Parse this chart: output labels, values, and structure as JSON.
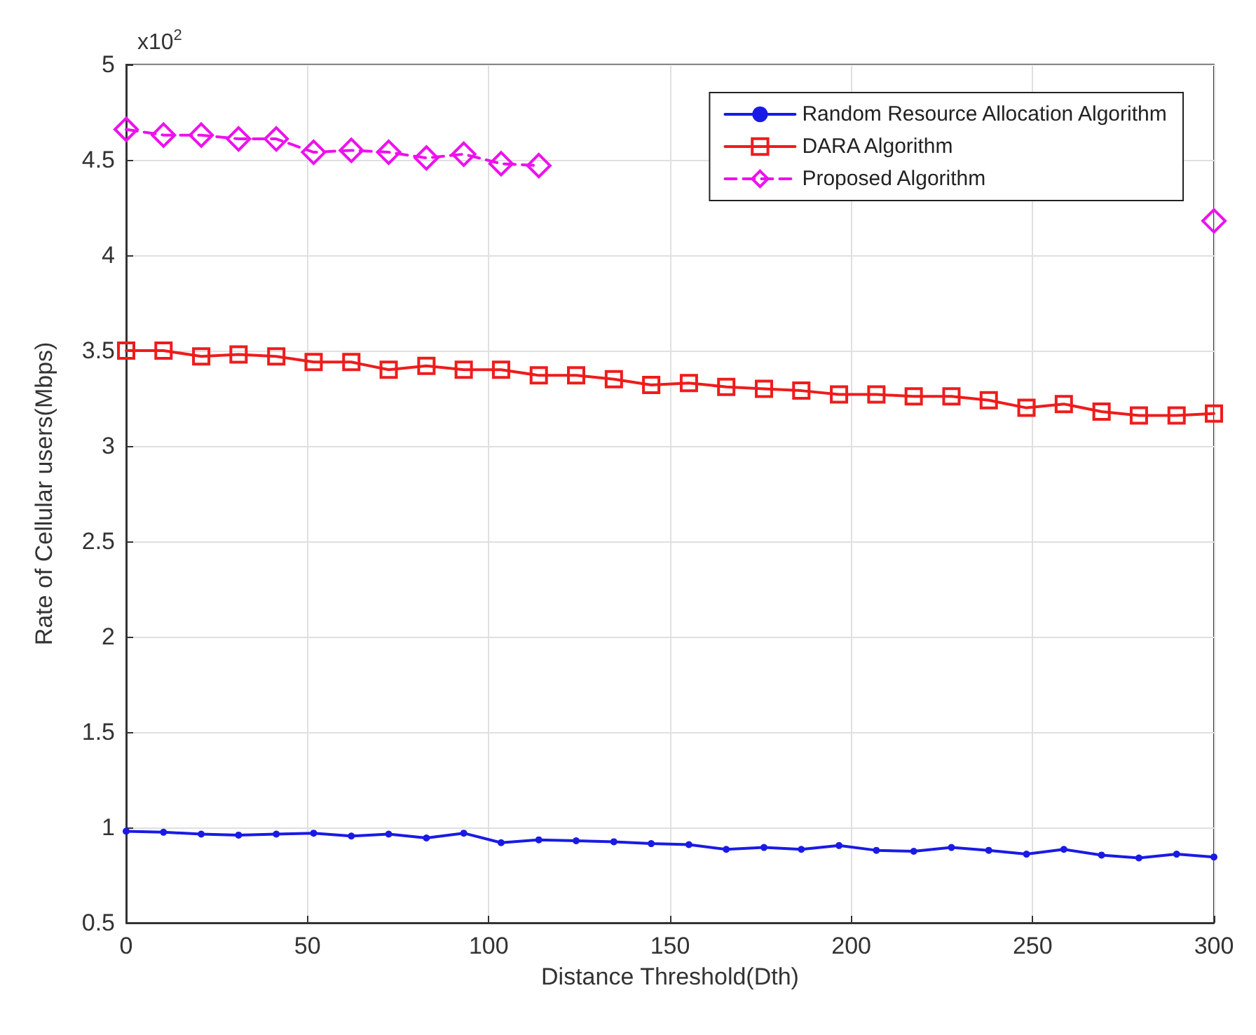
{
  "chart_data": {
    "type": "line",
    "xlabel": "Distance Threshold(Dth)",
    "ylabel": "Rate of Cellular users(Mbps)",
    "annotations": [
      "x10$^{2}$"
    ],
    "x": [
      0,
      10.3,
      20.7,
      31,
      41.4,
      51.7,
      62.1,
      72.4,
      82.8,
      93.1,
      103.4,
      113.8,
      124.1,
      134.5,
      144.8,
      155.2,
      165.5,
      175.9,
      186.2,
      196.6,
      206.9,
      217.2,
      227.6,
      237.9,
      248.3,
      258.6,
      269,
      279.3,
      289.7,
      300
    ],
    "series": [
      {
        "name": "Random Resource Allocation Algorithm",
        "color": "#1a1ae6",
        "marker": "circle",
        "line_style": "solid",
        "values": [
          0.98,
          0.975,
          0.965,
          0.96,
          0.965,
          0.97,
          0.955,
          0.965,
          0.945,
          0.97,
          0.92,
          0.935,
          0.93,
          0.925,
          0.915,
          0.91,
          0.885,
          0.895,
          0.885,
          0.905,
          0.88,
          0.875,
          0.895,
          0.88,
          0.86,
          0.885,
          0.855,
          0.84,
          0.86,
          0.845
        ]
      },
      {
        "name": "DARA Algorithm",
        "color": "#ee1c1c",
        "marker": "square",
        "line_style": "solid",
        "values": [
          3.5,
          3.5,
          3.47,
          3.48,
          3.47,
          3.44,
          3.44,
          3.4,
          3.42,
          3.4,
          3.4,
          3.37,
          3.37,
          3.35,
          3.32,
          3.33,
          3.31,
          3.3,
          3.29,
          3.27,
          3.27,
          3.26,
          3.26,
          3.24,
          3.2,
          3.22,
          3.18,
          3.16,
          3.16,
          3.17
        ]
      },
      {
        "name": "Proposed Algorithm",
        "color": "#ee10ee",
        "marker": "diamond",
        "line_style": "dashed",
        "values": [
          4.66,
          4.63,
          4.63,
          4.61,
          4.61,
          4.54,
          4.55,
          4.54,
          4.51,
          4.53,
          4.48,
          4.47,
          null,
          null,
          null,
          null,
          null,
          null,
          null,
          null,
          null,
          null,
          null,
          null,
          null,
          null,
          null,
          null,
          null,
          4.18
        ]
      }
    ],
    "xlim": [
      0,
      300
    ],
    "xticks": [
      0,
      50,
      100,
      150,
      200,
      250,
      300
    ],
    "ylim": [
      0.5,
      5
    ],
    "yticks": [
      0.5,
      1,
      1.5,
      2,
      2.5,
      3,
      3.5,
      4,
      4.5,
      5
    ],
    "grid": true,
    "legend": "top right"
  }
}
